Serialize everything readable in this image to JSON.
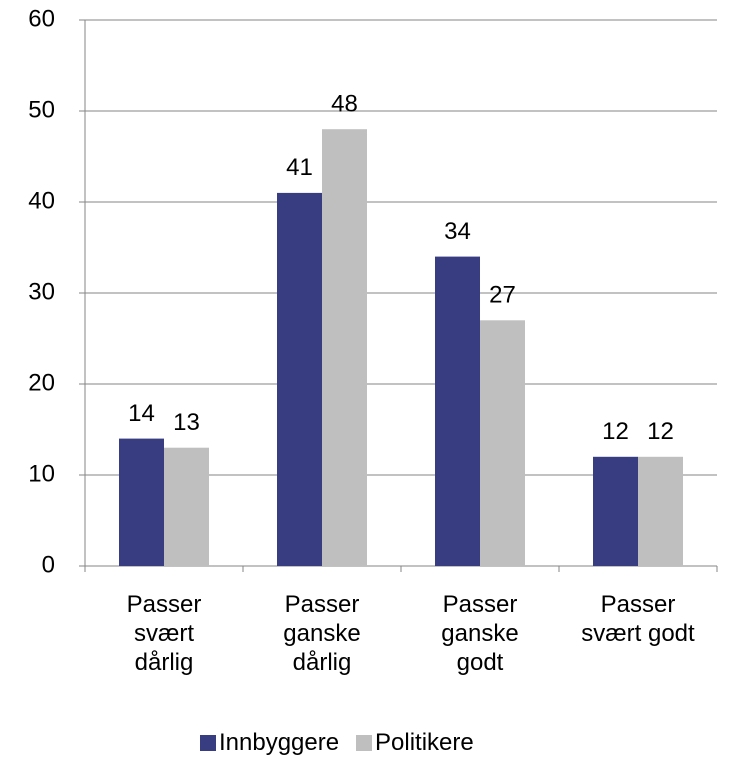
{
  "chart_data": {
    "type": "bar",
    "categories": [
      "Passer svært dårlig",
      "Passer ganske dårlig",
      "Passer ganske godt",
      "Passer svært godt"
    ],
    "series": [
      {
        "name": "Innbyggere",
        "color": "#383c80",
        "values": [
          14,
          41,
          34,
          12
        ]
      },
      {
        "name": "Politikere",
        "color": "#bfbfbf",
        "values": [
          13,
          48,
          27,
          12
        ]
      }
    ],
    "ylim": [
      0,
      60
    ],
    "yticks": [
      0,
      10,
      20,
      30,
      40,
      50,
      60
    ],
    "grid": true,
    "legend": "bottom"
  }
}
